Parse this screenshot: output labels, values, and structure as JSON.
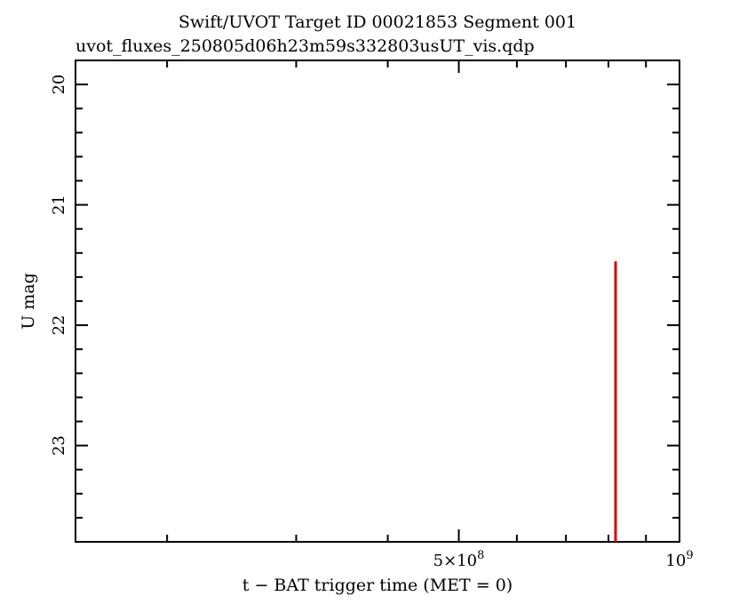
{
  "chart_data": {
    "type": "scatter",
    "title": "Swift/UVOT  Target ID 00021853 Segment 001",
    "subtitle": "uvot_fluxes_250805d06h23m59s332803usUT_vis.qdp",
    "xlabel": "t − BAT trigger time (MET = 0)",
    "ylabel": "U mag",
    "x_scale": "log",
    "xlim": [
      150000000,
      1000000000
    ],
    "ylim": [
      23.8,
      19.8
    ],
    "y_inverted": true,
    "x_tick_labels": [
      {
        "value": 500000000,
        "mantissa": "5×10",
        "exponent": "8"
      },
      {
        "value": 1000000000,
        "mantissa": "10",
        "exponent": "9"
      }
    ],
    "y_tick_labels": [
      "20",
      "21",
      "22",
      "23"
    ],
    "y_ticks": [
      20,
      21,
      22,
      23
    ],
    "series": [
      {
        "color": "#dd0000",
        "points": [
          {
            "x": 818000000,
            "y_upper_limit": 21.47,
            "y_extends_to": 23.8
          }
        ]
      }
    ],
    "grid": false
  }
}
